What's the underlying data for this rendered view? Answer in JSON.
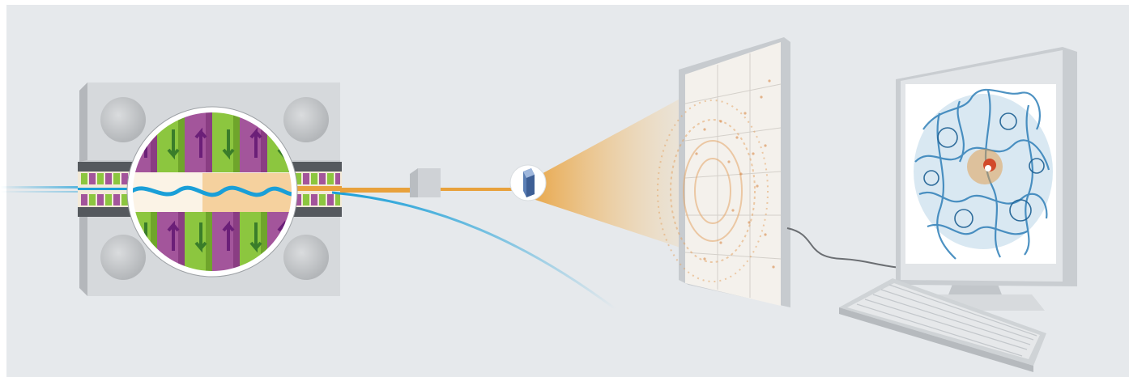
{
  "scene": {
    "title": "",
    "colors": {
      "background": "#e6e9ec",
      "beam_blue": "#1a9fd8",
      "xray_orange": "#e8a13c",
      "magnet_green": "#8cc63f",
      "magnet_purple": "#a3559b",
      "arrow_purple": "#7b2a86",
      "arrow_green": "#3e8e3e",
      "device_grey": "#cfd2d5",
      "protein_blue": "#2f7fb8"
    },
    "components": [
      {
        "id": "undulator",
        "icon": "undulator-magnet-array"
      },
      {
        "id": "monochromator",
        "icon": "grey-block"
      },
      {
        "id": "crystal",
        "icon": "crystal-icon"
      },
      {
        "id": "detector",
        "icon": "diffraction-detector-panel"
      },
      {
        "id": "computer",
        "icon": "monitor-with-protein-structure"
      },
      {
        "id": "keyboard",
        "icon": "keyboard-icon"
      }
    ]
  }
}
